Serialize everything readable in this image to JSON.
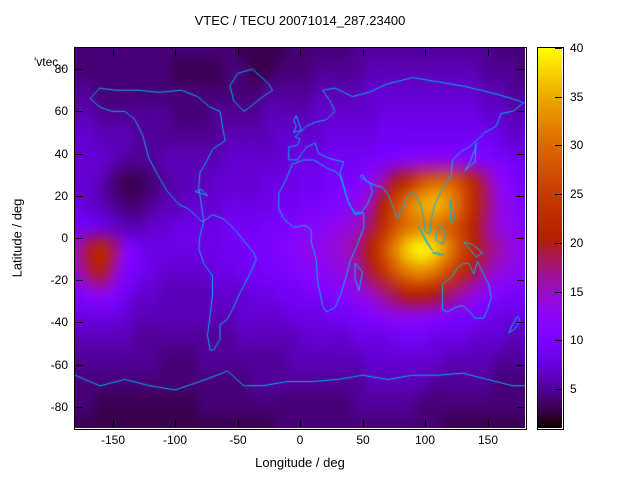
{
  "figure": {
    "title": "VTEC / TECU 20071014_287.23400",
    "key_label": "'vtec_",
    "xlabel": "Longitude / deg",
    "ylabel": "Latitude / deg",
    "background": "#ffffff",
    "coast_color": "#00b4e8",
    "border_color": "#000000"
  },
  "chart_data": {
    "type": "heatmap",
    "title": "VTEC / TECU 20071014_287.23400",
    "subtitle": "",
    "xlabel": "Longitude / deg",
    "ylabel": "Latitude / deg",
    "units": "TECU",
    "x_range": [
      -180,
      180
    ],
    "y_range": [
      -90,
      90
    ],
    "x_ticks": [
      -150,
      -100,
      -50,
      0,
      50,
      100,
      150
    ],
    "y_ticks": [
      -80,
      -60,
      -40,
      -20,
      0,
      20,
      40,
      60,
      80
    ],
    "grid_lines": false,
    "legend_position": "top-left-outside",
    "colorbar": {
      "range": [
        1,
        40
      ],
      "ticks": [
        5,
        10,
        15,
        20,
        25,
        30,
        35,
        40
      ],
      "palette": "gnuplot-default-rgbformulae-7-5-15 black-purple-violet-red-orange-yellow"
    },
    "grid": {
      "lon_start": -180,
      "lon_step": 10,
      "lat_start": 90,
      "lat_step": -10,
      "cols": 36,
      "rows": 18,
      "values": [
        [
          4,
          4,
          4,
          4,
          4,
          4,
          4,
          4,
          4,
          4,
          4,
          4,
          4,
          3,
          3,
          3,
          3,
          4,
          4,
          4,
          4,
          4,
          5,
          5,
          5,
          5,
          5,
          5,
          5,
          5,
          5,
          5,
          5,
          4,
          4,
          4
        ],
        [
          4,
          4,
          4,
          4,
          4,
          4,
          4,
          4,
          3,
          3,
          3,
          3,
          4,
          4,
          3,
          3,
          4,
          4,
          4,
          5,
          5,
          5,
          5,
          6,
          6,
          6,
          6,
          6,
          6,
          6,
          6,
          6,
          5,
          5,
          5,
          4
        ],
        [
          5,
          5,
          4,
          4,
          4,
          4,
          4,
          4,
          4,
          4,
          4,
          4,
          4,
          4,
          4,
          5,
          5,
          5,
          5,
          6,
          6,
          6,
          6,
          7,
          7,
          7,
          7,
          7,
          7,
          7,
          7,
          7,
          6,
          6,
          5,
          5
        ],
        [
          6,
          6,
          5,
          5,
          5,
          5,
          5,
          5,
          4,
          4,
          4,
          5,
          5,
          5,
          5,
          6,
          6,
          6,
          6,
          7,
          7,
          7,
          7,
          7,
          8,
          8,
          8,
          8,
          8,
          8,
          8,
          8,
          7,
          7,
          6,
          6
        ],
        [
          7,
          7,
          6,
          6,
          6,
          5,
          5,
          5,
          5,
          5,
          5,
          5,
          6,
          6,
          6,
          6,
          7,
          7,
          7,
          7,
          8,
          8,
          8,
          8,
          9,
          9,
          9,
          9,
          9,
          9,
          9,
          9,
          9,
          8,
          7,
          7
        ],
        [
          7,
          7,
          7,
          6,
          5,
          5,
          5,
          6,
          6,
          6,
          6,
          6,
          7,
          7,
          7,
          7,
          7,
          8,
          8,
          8,
          9,
          9,
          9,
          10,
          10,
          11,
          12,
          13,
          13,
          13,
          12,
          12,
          11,
          10,
          9,
          8
        ],
        [
          7,
          7,
          6,
          4,
          3,
          3,
          4,
          5,
          6,
          6,
          6,
          7,
          7,
          7,
          7,
          8,
          8,
          8,
          9,
          9,
          10,
          10,
          11,
          13,
          16,
          20,
          24,
          28,
          30,
          30,
          27,
          22,
          17,
          13,
          11,
          9
        ],
        [
          8,
          7,
          6,
          5,
          4,
          4,
          5,
          6,
          6,
          7,
          7,
          7,
          8,
          8,
          8,
          8,
          9,
          9,
          10,
          10,
          11,
          12,
          13,
          16,
          21,
          27,
          32,
          35,
          36,
          34,
          29,
          23,
          18,
          14,
          12,
          10
        ],
        [
          9,
          9,
          8,
          7,
          6,
          6,
          7,
          7,
          8,
          8,
          8,
          8,
          9,
          9,
          9,
          10,
          10,
          11,
          12,
          12,
          13,
          14,
          15,
          18,
          23,
          28,
          31,
          32,
          31,
          29,
          26,
          21,
          17,
          14,
          13,
          11
        ],
        [
          15,
          19,
          22,
          18,
          12,
          9,
          8,
          8,
          8,
          8,
          8,
          8,
          9,
          9,
          10,
          10,
          11,
          12,
          13,
          13,
          14,
          15,
          17,
          21,
          27,
          33,
          38,
          40,
          38,
          33,
          27,
          22,
          18,
          16,
          14,
          13
        ],
        [
          14,
          18,
          20,
          16,
          11,
          9,
          8,
          7,
          7,
          7,
          7,
          8,
          8,
          9,
          9,
          10,
          10,
          11,
          12,
          12,
          13,
          14,
          16,
          19,
          24,
          29,
          32,
          33,
          31,
          27,
          23,
          19,
          16,
          14,
          13,
          12
        ],
        [
          10,
          12,
          13,
          11,
          9,
          7,
          7,
          6,
          6,
          6,
          6,
          7,
          7,
          7,
          8,
          8,
          9,
          9,
          10,
          10,
          11,
          12,
          13,
          15,
          17,
          19,
          21,
          21,
          20,
          18,
          16,
          14,
          12,
          11,
          10,
          10
        ],
        [
          8,
          8,
          8,
          8,
          7,
          6,
          6,
          6,
          6,
          6,
          6,
          6,
          6,
          7,
          7,
          7,
          7,
          8,
          8,
          8,
          9,
          9,
          10,
          11,
          12,
          13,
          13,
          13,
          12,
          11,
          10,
          10,
          9,
          8,
          8,
          8
        ],
        [
          6,
          6,
          6,
          6,
          6,
          5,
          5,
          5,
          5,
          5,
          5,
          5,
          5,
          6,
          6,
          6,
          6,
          6,
          7,
          7,
          7,
          7,
          8,
          8,
          8,
          9,
          9,
          9,
          8,
          8,
          8,
          7,
          7,
          7,
          6,
          6
        ],
        [
          5,
          5,
          5,
          5,
          5,
          5,
          5,
          4,
          4,
          4,
          5,
          5,
          5,
          5,
          5,
          5,
          5,
          6,
          6,
          6,
          6,
          6,
          6,
          7,
          7,
          7,
          7,
          7,
          7,
          6,
          6,
          6,
          6,
          5,
          5,
          5
        ],
        [
          4,
          4,
          4,
          4,
          4,
          4,
          4,
          4,
          4,
          4,
          4,
          4,
          4,
          4,
          5,
          5,
          5,
          5,
          5,
          5,
          5,
          5,
          5,
          6,
          6,
          6,
          6,
          6,
          5,
          5,
          5,
          5,
          5,
          4,
          4,
          4
        ],
        [
          4,
          4,
          3,
          3,
          3,
          3,
          3,
          3,
          3,
          3,
          4,
          4,
          4,
          4,
          4,
          4,
          4,
          4,
          4,
          4,
          4,
          4,
          5,
          5,
          5,
          5,
          5,
          4,
          4,
          4,
          4,
          4,
          4,
          4,
          4,
          4
        ],
        [
          3,
          3,
          3,
          3,
          3,
          3,
          3,
          3,
          3,
          3,
          3,
          3,
          3,
          3,
          3,
          3,
          4,
          4,
          4,
          4,
          4,
          4,
          4,
          4,
          4,
          4,
          4,
          4,
          4,
          3,
          3,
          3,
          3,
          3,
          3,
          3
        ]
      ]
    }
  }
}
